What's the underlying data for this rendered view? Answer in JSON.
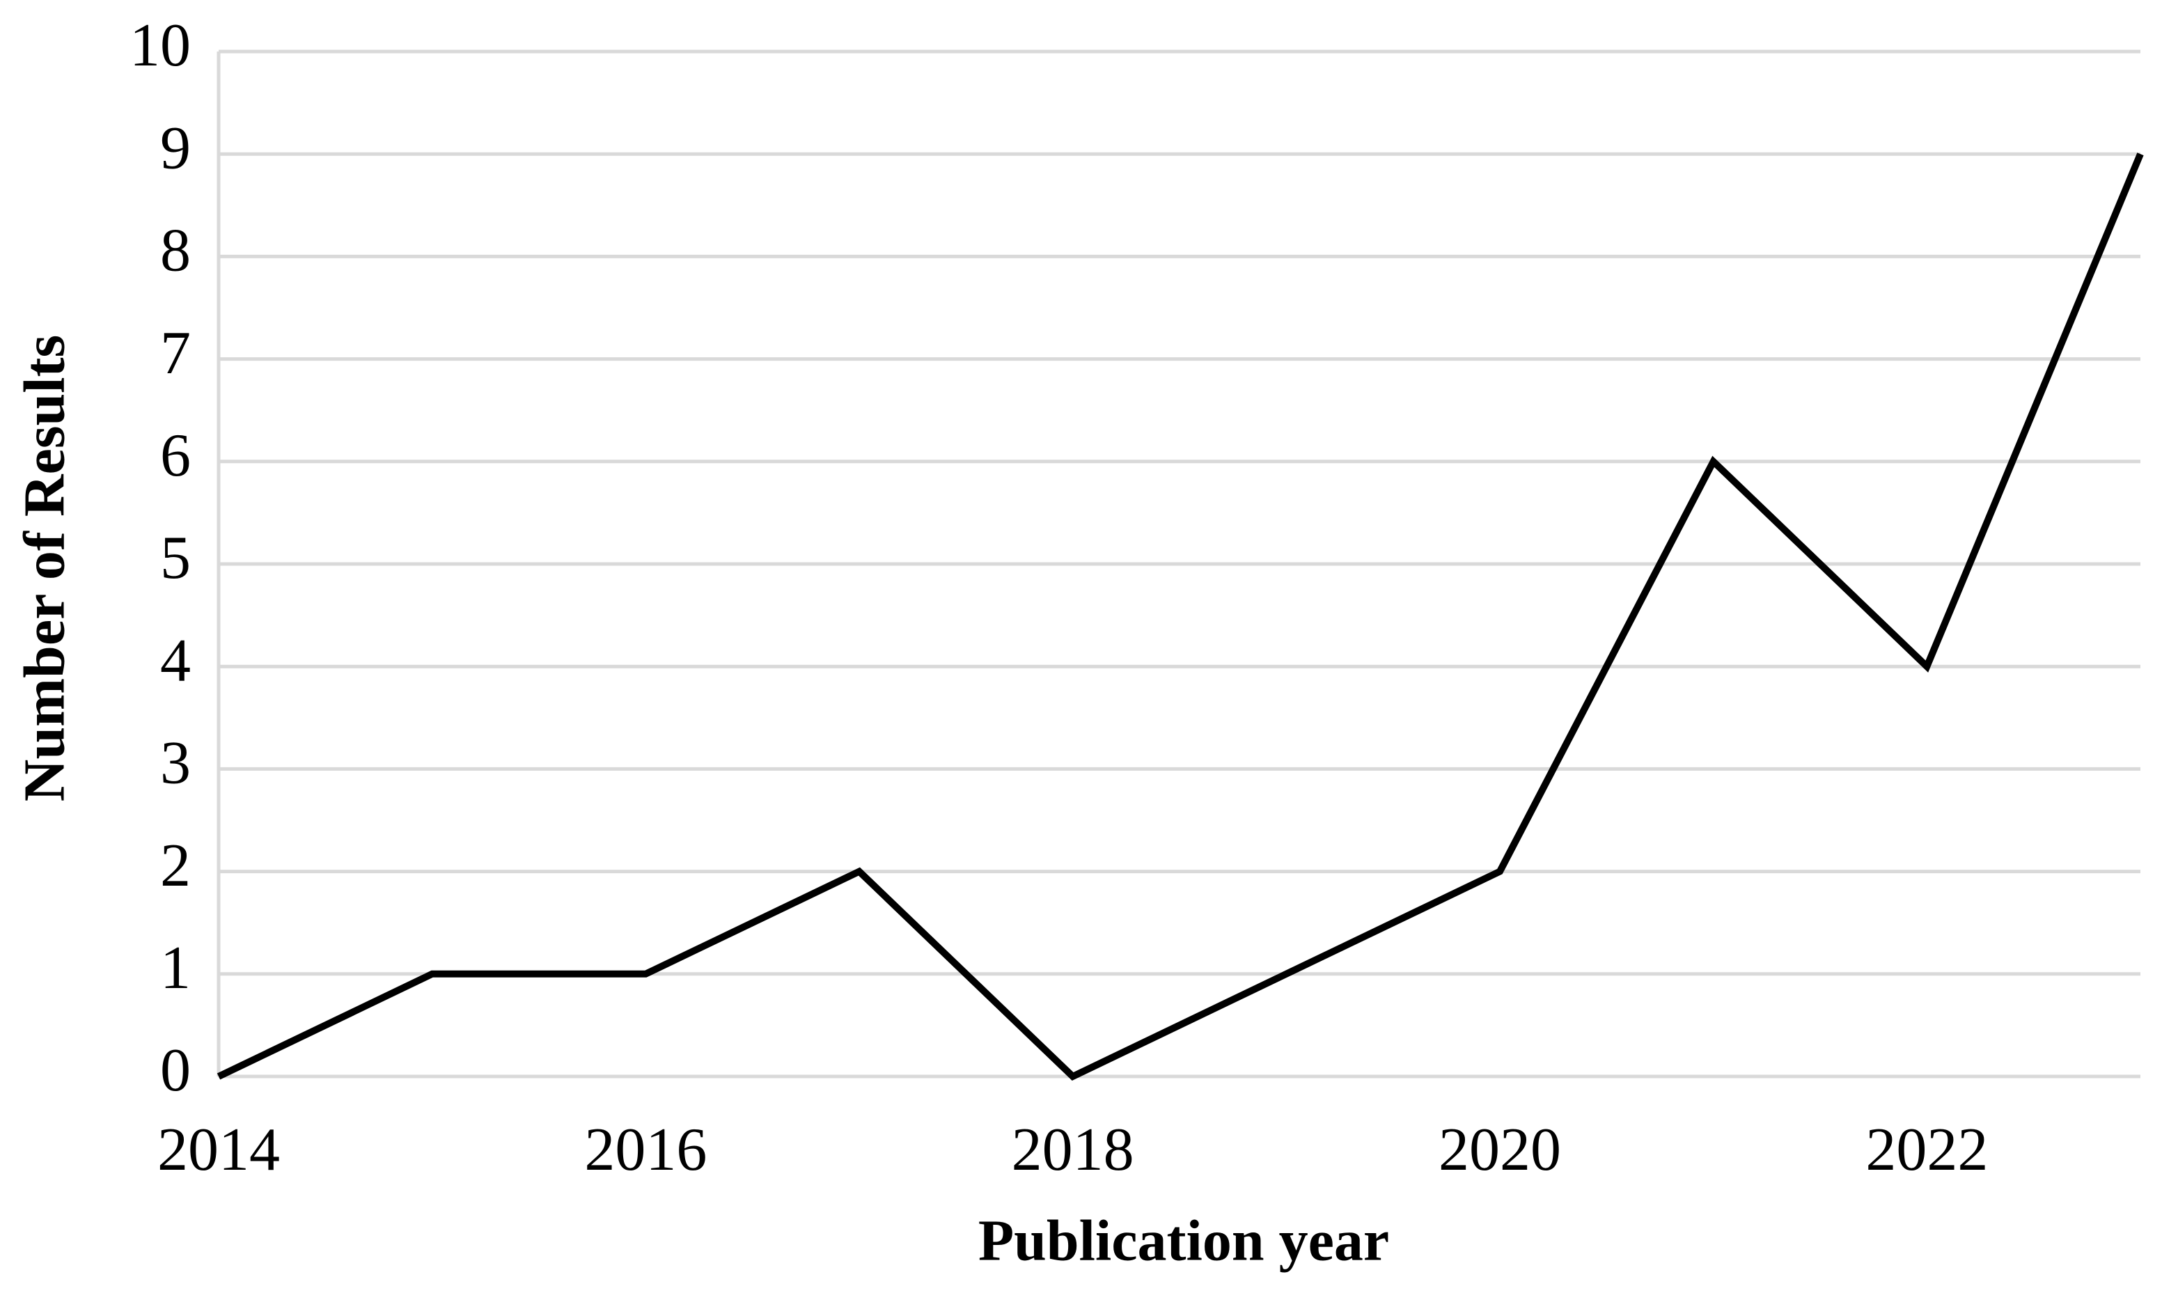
{
  "chart_data": {
    "type": "line",
    "x_label": "Publication year",
    "y_label": "Number of Results",
    "x": [
      2014,
      2015,
      2016,
      2017,
      2018,
      2019,
      2020,
      2021,
      2022,
      2023
    ],
    "series": [
      {
        "color": "#000000",
        "values": [
          0,
          1,
          1,
          2,
          0,
          1,
          2,
          6,
          4,
          9
        ]
      }
    ],
    "xlim": [
      2014,
      2023
    ],
    "xticks": [
      2014,
      2016,
      2018,
      2020,
      2022
    ],
    "ylim": [
      0,
      10
    ],
    "yticks": [
      0,
      1,
      2,
      3,
      4,
      5,
      6,
      7,
      8,
      9,
      10
    ],
    "grid": true
  }
}
